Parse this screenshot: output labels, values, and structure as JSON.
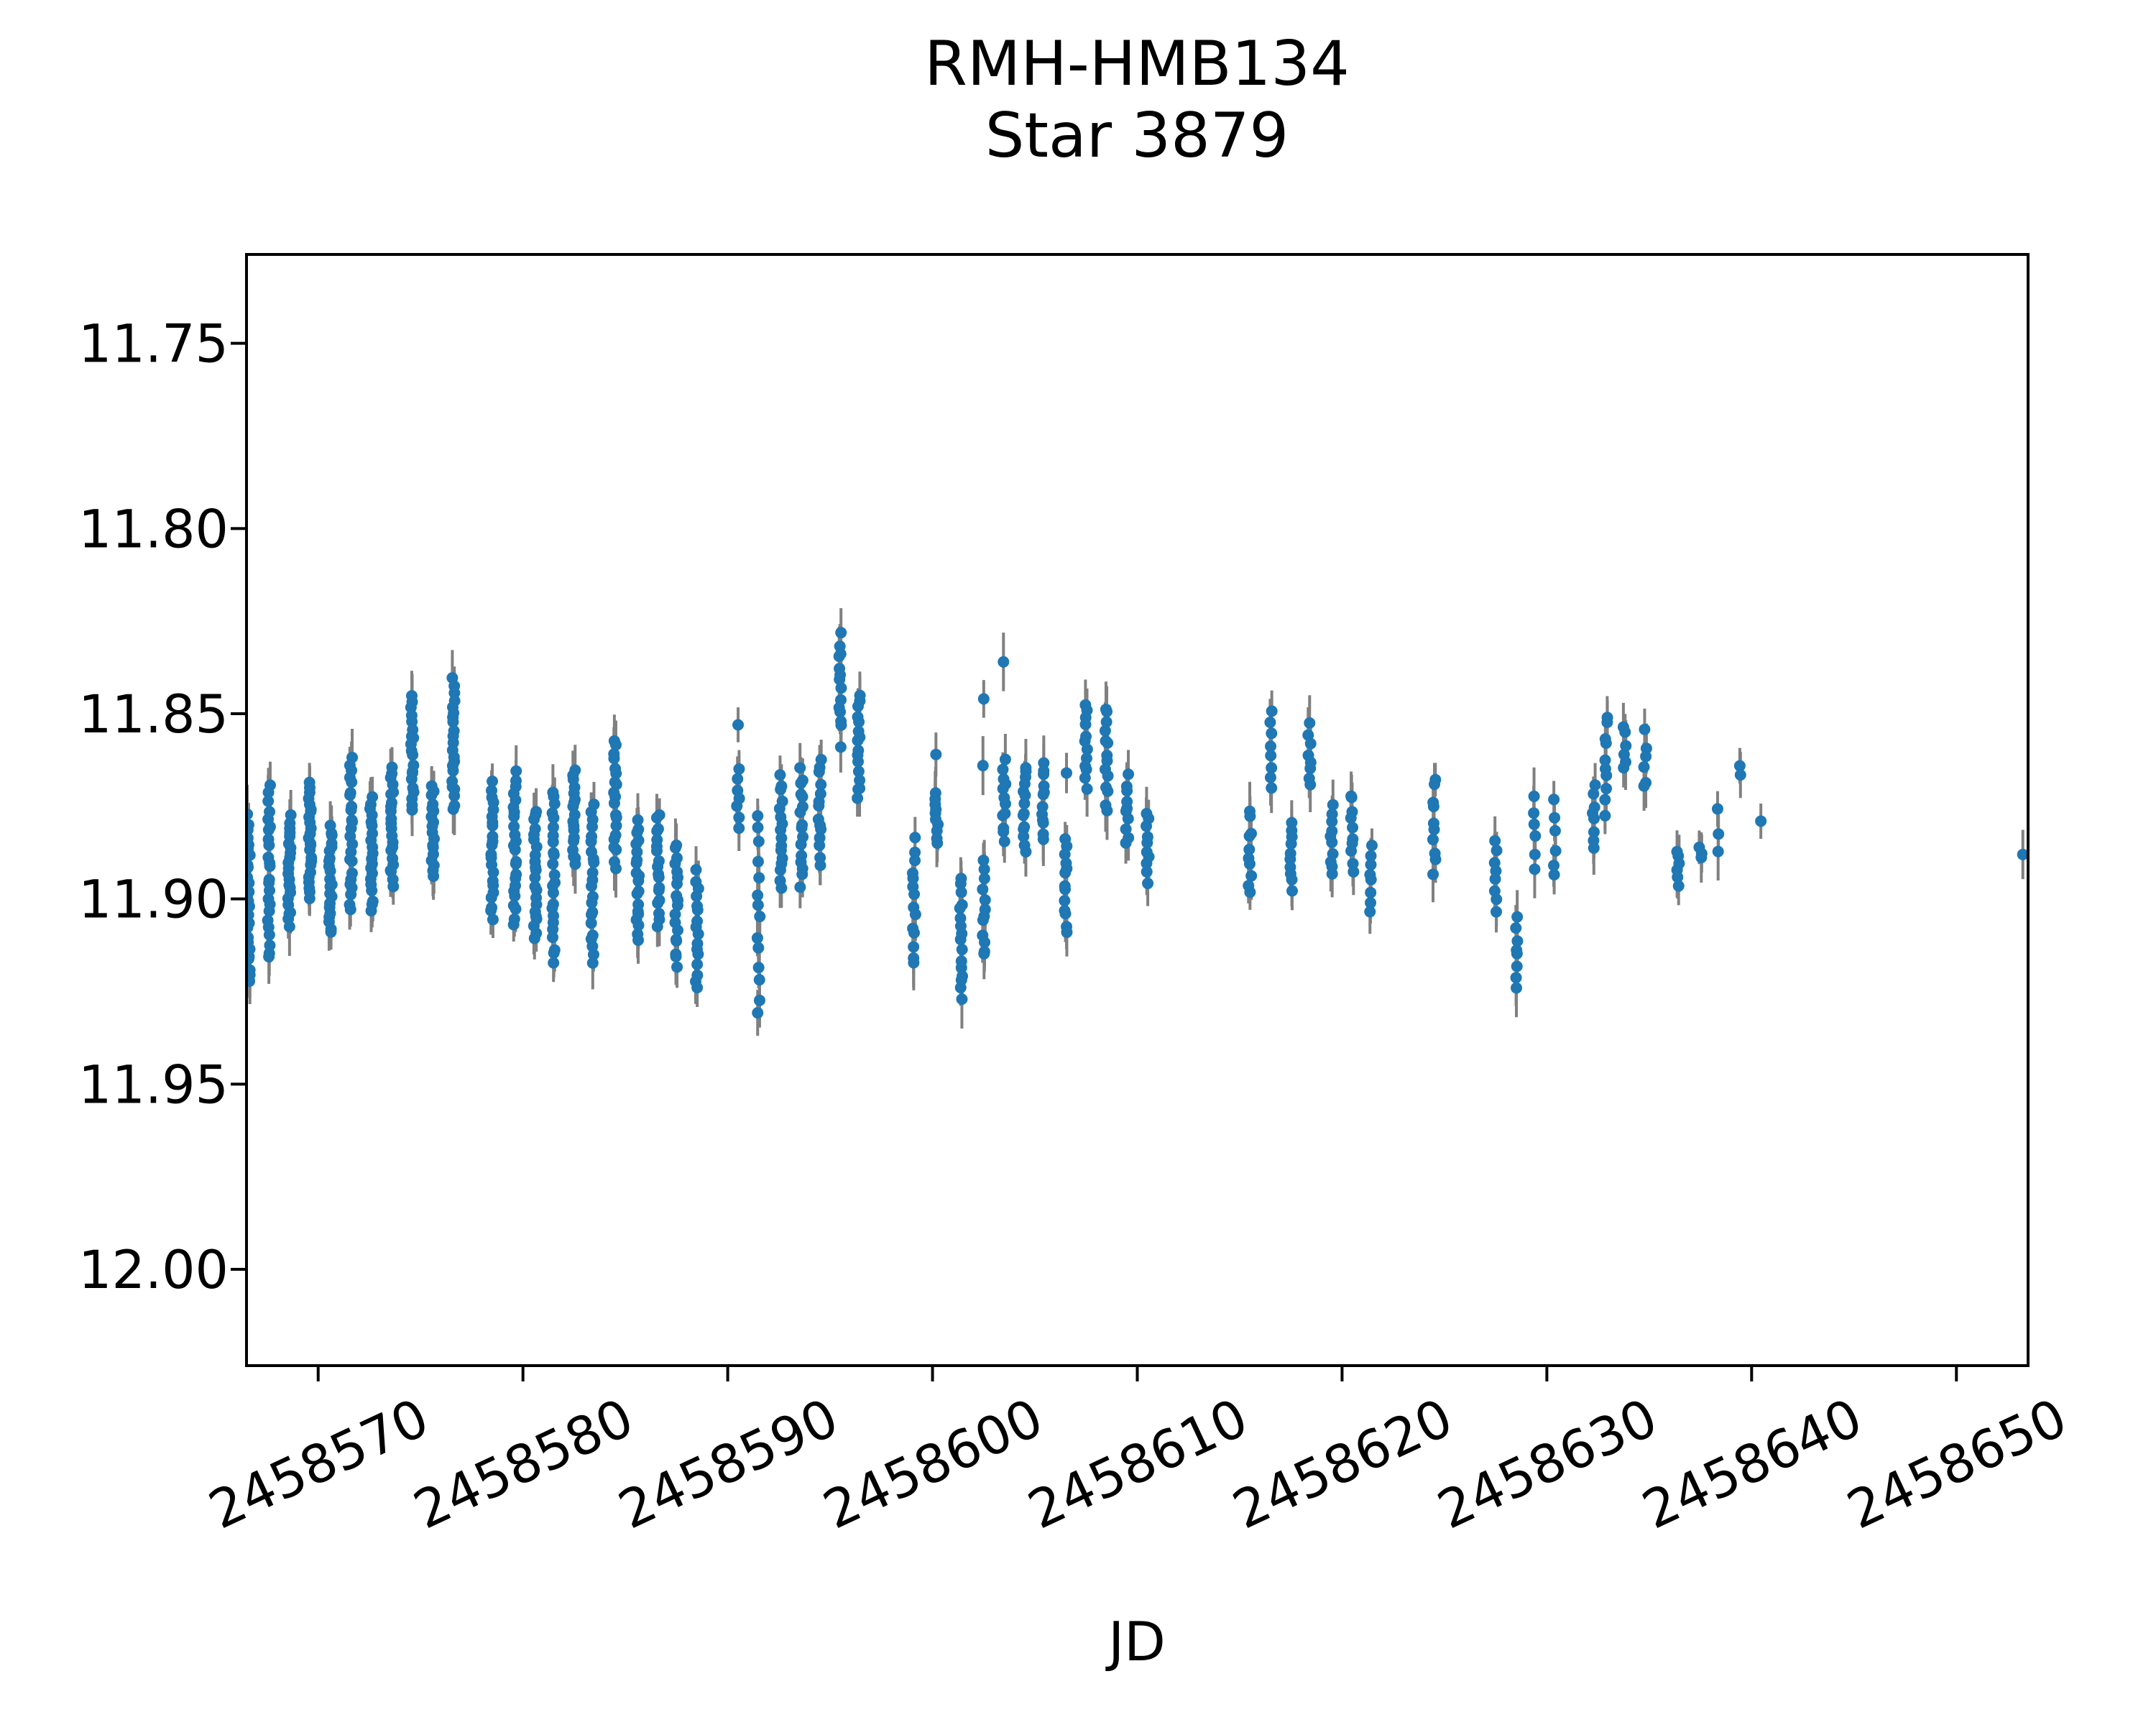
{
  "chart_data": {
    "type": "scatter",
    "title": "RMH-HMB134",
    "subtitle": "Star 3879",
    "xlabel": "JD",
    "ylabel": "",
    "grid": false,
    "legend_position": "none",
    "x_ticks": [
      2458570,
      2458580,
      2458590,
      2458600,
      2458610,
      2458620,
      2458630,
      2458640,
      2458650
    ],
    "y_ticks": [
      11.75,
      11.8,
      11.85,
      11.9,
      11.95,
      12.0
    ],
    "y_tick_labels": [
      "11.75",
      "11.80",
      "11.85",
      "11.90",
      "11.95",
      "12.00"
    ],
    "xlim": [
      2458566.5,
      2458653.5
    ],
    "ylim_bottom": 12.026,
    "ylim_top": 11.726,
    "y_axis_inverted": true,
    "x_tick_label_rotation_deg": 25,
    "marker_color": "#1f77b4",
    "errorbar_color": "#808080",
    "typical_mag_error": 0.006,
    "cluster_format": "[JD_center, mag_bright, mag_faint, n_points] — nightly groups of photometric measurements with gray error bars",
    "series": [
      {
        "name": "Star 3879 photometry",
        "clusters": [
          [
            2458566.6,
            11.877,
            11.923,
            26
          ],
          [
            2458567.6,
            11.869,
            11.917,
            24
          ],
          [
            2458568.6,
            11.877,
            11.908,
            22
          ],
          [
            2458569.6,
            11.868,
            11.9,
            24
          ],
          [
            2458570.6,
            11.88,
            11.91,
            22
          ],
          [
            2458571.6,
            11.861,
            11.904,
            24
          ],
          [
            2458572.6,
            11.872,
            11.904,
            20
          ],
          [
            2458573.6,
            11.864,
            11.897,
            22
          ],
          [
            2458574.6,
            11.845,
            11.877,
            20
          ],
          [
            2458575.6,
            11.869,
            11.894,
            18
          ],
          [
            2458576.6,
            11.84,
            11.877,
            22
          ],
          [
            2458578.5,
            11.868,
            11.906,
            22
          ],
          [
            2458579.6,
            11.865,
            11.908,
            24
          ],
          [
            2458580.6,
            11.875,
            11.912,
            22
          ],
          [
            2458581.5,
            11.87,
            11.918,
            24
          ],
          [
            2458582.5,
            11.864,
            11.892,
            18
          ],
          [
            2458583.4,
            11.874,
            11.918,
            22
          ],
          [
            2458584.5,
            11.856,
            11.892,
            20
          ],
          [
            2458585.6,
            11.878,
            11.912,
            20
          ],
          [
            2458586.6,
            11.876,
            11.908,
            18
          ],
          [
            2458587.5,
            11.884,
            11.919,
            18
          ],
          [
            2458588.5,
            11.892,
            11.925,
            16
          ],
          [
            2458590.5,
            11.853,
            11.853,
            1
          ],
          [
            2458590.5,
            11.864,
            11.882,
            7
          ],
          [
            2458591.5,
            11.875,
            11.934,
            14
          ],
          [
            2458592.6,
            11.866,
            11.898,
            16
          ],
          [
            2458593.6,
            11.864,
            11.897,
            16
          ],
          [
            2458594.5,
            11.861,
            11.892,
            14
          ],
          [
            2458595.5,
            11.828,
            11.855,
            13
          ],
          [
            2458595.5,
            11.859,
            11.859,
            1
          ],
          [
            2458596.4,
            11.844,
            11.874,
            16
          ],
          [
            2458599.1,
            11.883,
            11.919,
            14
          ],
          [
            2458600.2,
            11.861,
            11.861,
            1
          ],
          [
            2458600.2,
            11.87,
            11.886,
            10
          ],
          [
            2458601.4,
            11.893,
            11.928,
            16
          ],
          [
            2458602.5,
            11.846,
            11.846,
            1
          ],
          [
            2458602.5,
            11.864,
            11.864,
            1
          ],
          [
            2458602.5,
            11.889,
            11.917,
            12
          ],
          [
            2458603.5,
            11.836,
            11.836,
            1
          ],
          [
            2458603.5,
            11.862,
            11.885,
            12
          ],
          [
            2458604.5,
            11.863,
            11.888,
            14
          ],
          [
            2458605.4,
            11.862,
            11.885,
            12
          ],
          [
            2458606.5,
            11.866,
            11.866,
            1
          ],
          [
            2458606.5,
            11.882,
            11.91,
            13
          ],
          [
            2458607.5,
            11.846,
            11.871,
            12
          ],
          [
            2458608.5,
            11.847,
            11.877,
            14
          ],
          [
            2458609.5,
            11.866,
            11.886,
            10
          ],
          [
            2458610.5,
            11.876,
            11.896,
            10
          ],
          [
            2458615.5,
            11.875,
            11.9,
            10
          ],
          [
            2458616.5,
            11.849,
            11.871,
            8
          ],
          [
            2458617.5,
            11.879,
            11.898,
            10
          ],
          [
            2458618.4,
            11.852,
            11.871,
            8
          ],
          [
            2458619.5,
            11.873,
            11.895,
            10
          ],
          [
            2458620.5,
            11.87,
            11.894,
            10
          ],
          [
            2458621.4,
            11.884,
            11.904,
            8
          ],
          [
            2458624.5,
            11.866,
            11.894,
            10
          ],
          [
            2458627.5,
            11.884,
            11.904,
            8
          ],
          [
            2458628.5,
            11.904,
            11.925,
            8
          ],
          [
            2458629.4,
            11.871,
            11.893,
            6
          ],
          [
            2458630.4,
            11.871,
            11.896,
            6
          ],
          [
            2458632.3,
            11.868,
            11.888,
            8
          ],
          [
            2458632.9,
            11.849,
            11.878,
            10
          ],
          [
            2458633.8,
            11.852,
            11.866,
            6
          ],
          [
            2458634.8,
            11.854,
            11.872,
            6
          ],
          [
            2458636.4,
            11.886,
            11.898,
            6
          ],
          [
            2458637.5,
            11.884,
            11.891,
            3
          ],
          [
            2458638.4,
            11.874,
            11.891,
            3
          ],
          [
            2458639.4,
            11.863,
            11.868,
            2
          ],
          [
            2458640.4,
            11.879,
            11.879,
            1
          ],
          [
            2458653.2,
            11.888,
            11.888,
            1
          ]
        ]
      }
    ]
  }
}
